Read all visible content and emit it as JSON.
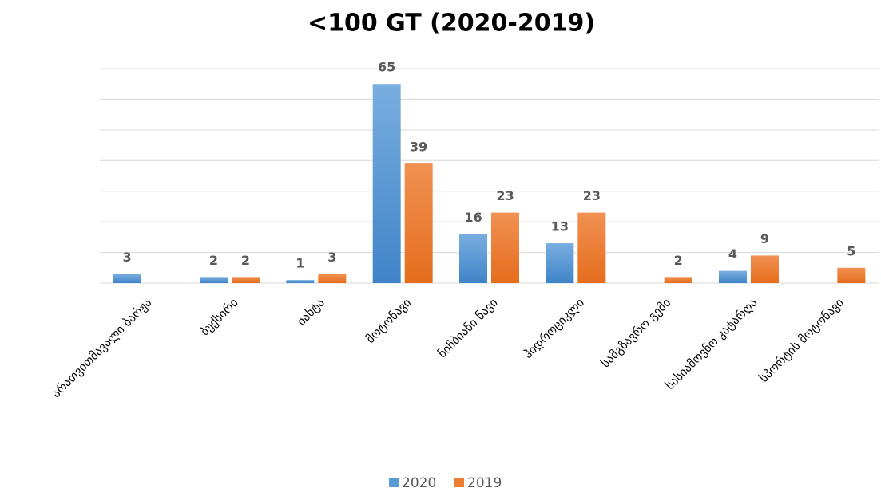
{
  "chart_data": {
    "type": "bar",
    "title": "<100 GT (2020-2019)",
    "categories": [
      "არათვითმავალი ბარჟა",
      "ბუქსირი",
      "იახტა",
      "მოტონავი",
      "ნიჩბიანი ნავი",
      "ჰიდროციკლი",
      "სამგზავრო გემი",
      "სასიამოვნო კატარღა",
      "სპორტის მოტონავი"
    ],
    "series": [
      {
        "name": "2020",
        "color": "#5b9bd5",
        "values": [
          3,
          2,
          1,
          65,
          16,
          13,
          null,
          4,
          null
        ]
      },
      {
        "name": "2019",
        "color": "#ed7d31",
        "values": [
          null,
          2,
          3,
          39,
          23,
          23,
          2,
          9,
          5
        ]
      }
    ],
    "ylim": [
      0,
      70
    ],
    "yticks": [
      0,
      10,
      20,
      30,
      40,
      50,
      60,
      70
    ],
    "grid": true,
    "legend": "bottom"
  }
}
